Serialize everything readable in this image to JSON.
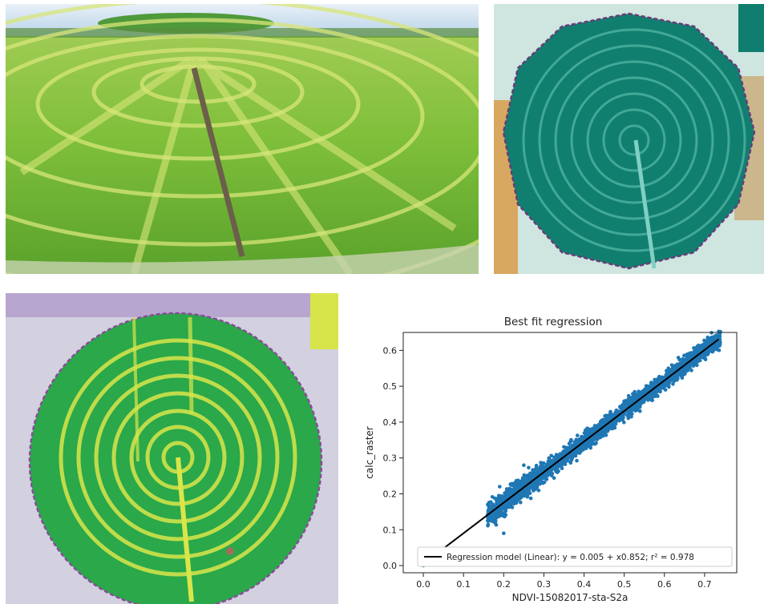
{
  "colors": {
    "scatter": "#1f77b4",
    "fit_line": "#000000",
    "crop_green": "#6fae34",
    "teal": "#0f7e6e",
    "ndvi_green": "#2aa84a",
    "ndvi_yellow": "#d9e64a"
  },
  "panels": {
    "photo": "center-pivot irrigated field aerial photo",
    "teal_map": "teal NDVI raster of pivot field",
    "green_map": "green NDVI raster of pivot field"
  },
  "chart_data": {
    "type": "scatter",
    "title": "Best fit regression",
    "xlabel": "NDVI-15082017-sta-S2a",
    "ylabel": "calc_raster",
    "xlim": [
      -0.05,
      0.78
    ],
    "ylim": [
      -0.02,
      0.65
    ],
    "xticks": [
      "0.0",
      "0.1",
      "0.2",
      "0.3",
      "0.4",
      "0.5",
      "0.6",
      "0.7"
    ],
    "yticks": [
      "0.0",
      "0.1",
      "0.2",
      "0.3",
      "0.4",
      "0.5",
      "0.6"
    ],
    "grid": false,
    "legend_position": "bottom-right",
    "series": [
      {
        "kind": "scatter",
        "description": "point cloud along fit line",
        "x_range": [
          0.0,
          0.74
        ],
        "y_spread": 0.05,
        "outlier_points": [
          [
            0.0,
            0.0
          ],
          [
            0.2,
            0.09
          ],
          [
            0.16,
            0.17
          ],
          [
            0.19,
            0.22
          ],
          [
            0.25,
            0.28
          ]
        ]
      },
      {
        "kind": "line",
        "name": "Regression model (Linear)",
        "intercept": 0.005,
        "slope": 0.852,
        "x": [
          0.0,
          0.735
        ],
        "y": [
          0.005,
          0.631
        ]
      }
    ],
    "legend": {
      "label_prefix": "Regression model (Linear): ",
      "equation": "y = 0.005 + x0.852; r² = 0.978"
    }
  }
}
